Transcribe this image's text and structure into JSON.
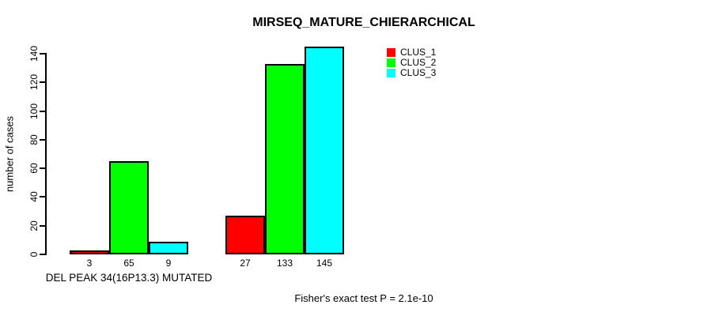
{
  "chart_data": {
    "type": "bar",
    "title": "MIRSEQ_MATURE_CHIERARCHICAL",
    "ylabel": "number of cases",
    "xlabel": "DEL PEAK 34(16P13.3) MUTATED",
    "categories": [
      "DEL PEAK 34(16P13.3) MUTATED",
      ""
    ],
    "series": [
      {
        "name": "CLUS_1",
        "color": "#ff0000",
        "values": [
          3,
          27
        ]
      },
      {
        "name": "CLUS_2",
        "color": "#00ff00",
        "values": [
          65,
          133
        ]
      },
      {
        "name": "CLUS_3",
        "color": "#00ffff",
        "values": [
          9,
          145
        ]
      }
    ],
    "bar_value_labels": [
      [
        3,
        65,
        9
      ],
      [
        27,
        133,
        145
      ]
    ],
    "yticks": [
      0,
      20,
      40,
      60,
      80,
      100,
      120,
      140
    ],
    "ylim": [
      0,
      145
    ],
    "grid": false,
    "legend_position": "top-right",
    "annotation": "Fisher's exact test P = 2.1e-10"
  }
}
